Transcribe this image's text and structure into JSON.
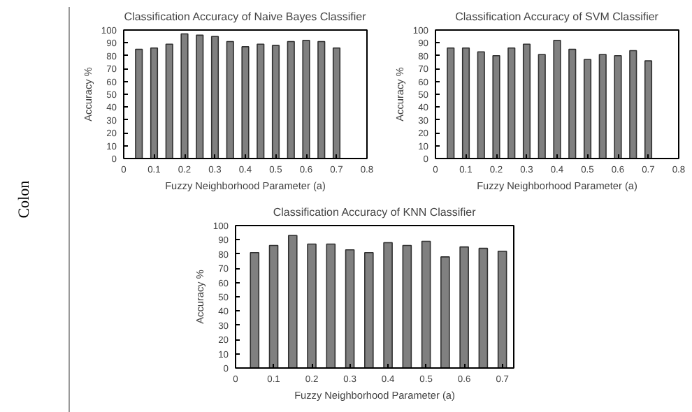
{
  "chart_data": [
    {
      "type": "bar",
      "title": "Classification Accuracy of Naive Bayes Classifier",
      "xlabel": "Fuzzy Neighborhood Parameter (a)",
      "ylabel": "Accuracy %",
      "annotations": [
        "Colon"
      ],
      "x": [
        0.05,
        0.1,
        0.15,
        0.2,
        0.25,
        0.3,
        0.35,
        0.4,
        0.45,
        0.5,
        0.55,
        0.6,
        0.65,
        0.7
      ],
      "values": [
        85,
        86,
        89,
        97,
        96,
        95,
        91,
        87,
        89,
        88,
        91,
        92,
        91,
        86
      ],
      "color": "#808080",
      "xlim": [
        0,
        0.8
      ],
      "xticks": [
        0,
        0.1,
        0.2,
        0.3,
        0.4,
        0.5,
        0.6,
        0.7,
        0.8
      ],
      "ylim": [
        0,
        100
      ],
      "yticks": [
        0,
        10,
        20,
        30,
        40,
        50,
        60,
        70,
        80,
        90,
        100
      ],
      "grid": false
    },
    {
      "type": "bar",
      "title": "Classification Accuracy of SVM Classifier",
      "xlabel": "Fuzzy Neighborhood Parameter (a)",
      "ylabel": "Accuracy %",
      "x": [
        0.05,
        0.1,
        0.15,
        0.2,
        0.25,
        0.3,
        0.35,
        0.4,
        0.45,
        0.5,
        0.55,
        0.6,
        0.65,
        0.7
      ],
      "values": [
        86,
        86,
        83,
        80,
        86,
        89,
        81,
        92,
        85,
        77,
        81,
        80,
        84,
        76
      ],
      "color": "#808080",
      "xlim": [
        0,
        0.8
      ],
      "xticks": [
        0,
        0.1,
        0.2,
        0.3,
        0.4,
        0.5,
        0.6,
        0.7,
        0.8
      ],
      "ylim": [
        0,
        100
      ],
      "yticks": [
        0,
        10,
        20,
        30,
        40,
        50,
        60,
        70,
        80,
        90,
        100
      ],
      "grid": false
    },
    {
      "type": "bar",
      "title": "Classification Accuracy of KNN Classifier",
      "xlabel": "Fuzzy Neighborhood Parameter (a)",
      "ylabel": "Accuracy %",
      "x": [
        0.05,
        0.1,
        0.15,
        0.2,
        0.25,
        0.3,
        0.35,
        0.4,
        0.45,
        0.5,
        0.55,
        0.6,
        0.65,
        0.7
      ],
      "values": [
        81,
        86,
        93,
        87,
        87,
        83,
        81,
        88,
        86,
        89,
        78,
        85,
        84,
        82
      ],
      "color": "#808080",
      "xlim": [
        0,
        0.73
      ],
      "xticks": [
        0,
        0.1,
        0.2,
        0.3,
        0.4,
        0.5,
        0.6,
        0.7
      ],
      "ylim": [
        0,
        100
      ],
      "yticks": [
        0,
        10,
        20,
        30,
        40,
        50,
        60,
        70,
        80,
        90,
        100
      ],
      "grid": false
    }
  ]
}
